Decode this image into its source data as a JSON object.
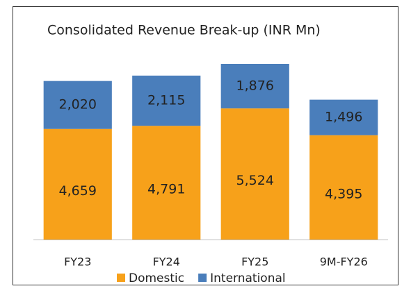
{
  "chart_data": {
    "type": "stacked_bar",
    "title": "Consolidated Revenue Break-up (INR Mn)",
    "categories": [
      "FY23",
      "FY24",
      "FY25",
      "9M-FY26"
    ],
    "series": [
      {
        "name": "Domestic",
        "color": "#f7a11a",
        "values": [
          4659,
          4791,
          5524,
          4395
        ],
        "value_labels": [
          "4,659",
          "4,791",
          "5,524",
          "4,395"
        ]
      },
      {
        "name": "International",
        "color": "#4a7ebb",
        "values": [
          2020,
          2115,
          1876,
          1496
        ],
        "value_labels": [
          "2,020",
          "2,115",
          "1,876",
          "1,496"
        ]
      }
    ],
    "legend": "bottom"
  }
}
